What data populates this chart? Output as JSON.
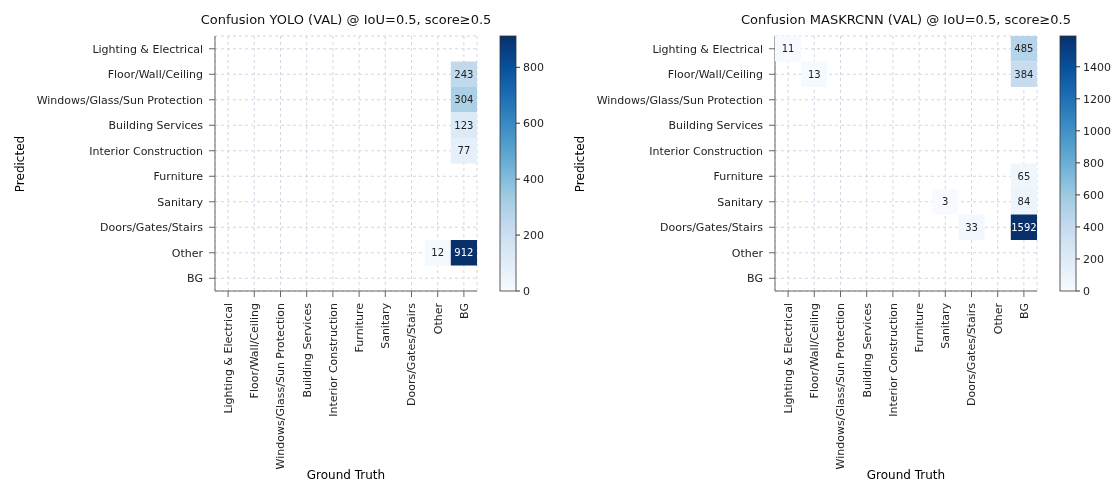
{
  "chart_data": [
    {
      "type": "heatmap",
      "title": "Confusion YOLO (VAL) @ IoU=0.5, score≥0.5",
      "xlabel": "Ground Truth",
      "ylabel": "Predicted",
      "grid": true,
      "categories": [
        "Lighting & Electrical",
        "Floor/Wall/Ceiling",
        "Windows/Glass/Sun Protection",
        "Building Services",
        "Interior Construction",
        "Furniture",
        "Sanitary",
        "Doors/Gates/Stairs",
        "Other",
        "BG"
      ],
      "y_categories": [
        "Lighting & Electrical",
        "Floor/Wall/Ceiling",
        "Windows/Glass/Sun Protection",
        "Building Services",
        "Interior Construction",
        "Furniture",
        "Sanitary",
        "Doors/Gates/Stairs",
        "Other",
        "BG"
      ],
      "cells": [
        [
          0,
          0,
          0,
          0,
          0,
          0,
          0,
          0,
          0,
          0
        ],
        [
          0,
          0,
          0,
          0,
          0,
          0,
          0,
          0,
          0,
          243
        ],
        [
          0,
          0,
          0,
          0,
          0,
          0,
          0,
          0,
          0,
          304
        ],
        [
          0,
          0,
          0,
          0,
          0,
          0,
          0,
          0,
          0,
          123
        ],
        [
          0,
          0,
          0,
          0,
          0,
          0,
          0,
          0,
          0,
          77
        ],
        [
          0,
          0,
          0,
          0,
          0,
          0,
          0,
          0,
          0,
          0
        ],
        [
          0,
          0,
          0,
          0,
          0,
          0,
          0,
          0,
          0,
          0
        ],
        [
          0,
          0,
          0,
          0,
          0,
          0,
          0,
          0,
          0,
          0
        ],
        [
          0,
          0,
          0,
          0,
          0,
          0,
          0,
          0,
          12,
          912
        ],
        [
          0,
          0,
          0,
          0,
          0,
          0,
          0,
          0,
          0,
          0
        ]
      ],
      "cell_labels": [
        [
          null,
          null,
          null,
          null,
          null,
          null,
          null,
          null,
          null,
          null
        ],
        [
          null,
          null,
          null,
          null,
          null,
          null,
          null,
          null,
          null,
          "243"
        ],
        [
          null,
          null,
          null,
          null,
          null,
          null,
          null,
          null,
          null,
          "304"
        ],
        [
          null,
          null,
          null,
          null,
          null,
          null,
          null,
          null,
          null,
          "123"
        ],
        [
          null,
          null,
          null,
          null,
          null,
          null,
          null,
          null,
          null,
          "77"
        ],
        [
          null,
          null,
          null,
          null,
          null,
          null,
          null,
          null,
          null,
          null
        ],
        [
          null,
          null,
          null,
          null,
          null,
          null,
          null,
          null,
          null,
          null
        ],
        [
          null,
          null,
          null,
          null,
          null,
          null,
          null,
          null,
          null,
          null
        ],
        [
          null,
          null,
          null,
          null,
          null,
          null,
          null,
          null,
          "12",
          "912"
        ],
        [
          null,
          null,
          null,
          null,
          null,
          null,
          null,
          null,
          null,
          null
        ]
      ],
      "clim": [
        0,
        912
      ],
      "cticks": [
        0,
        200,
        400,
        600,
        800
      ]
    },
    {
      "type": "heatmap",
      "title": "Confusion MASKRCNN (VAL) @ IoU=0.5, score≥0.5",
      "xlabel": "Ground Truth",
      "ylabel": "Predicted",
      "grid": true,
      "categories": [
        "Lighting & Electrical",
        "Floor/Wall/Ceiling",
        "Windows/Glass/Sun Protection",
        "Building Services",
        "Interior Construction",
        "Furniture",
        "Sanitary",
        "Doors/Gates/Stairs",
        "Other",
        "BG"
      ],
      "y_categories": [
        "Lighting & Electrical",
        "Floor/Wall/Ceiling",
        "Windows/Glass/Sun Protection",
        "Building Services",
        "Interior Construction",
        "Furniture",
        "Sanitary",
        "Doors/Gates/Stairs",
        "Other",
        "BG"
      ],
      "cells": [
        [
          11,
          0,
          0,
          0,
          0,
          0,
          0,
          0,
          0,
          485
        ],
        [
          0,
          13,
          0,
          0,
          0,
          0,
          0,
          0,
          0,
          384
        ],
        [
          0,
          0,
          0,
          0,
          0,
          0,
          0,
          0,
          0,
          0
        ],
        [
          0,
          0,
          0,
          0,
          0,
          0,
          0,
          0,
          0,
          0
        ],
        [
          0,
          0,
          0,
          0,
          0,
          0,
          0,
          0,
          0,
          0
        ],
        [
          0,
          0,
          0,
          0,
          0,
          0,
          0,
          0,
          0,
          65
        ],
        [
          0,
          0,
          0,
          0,
          0,
          0,
          3,
          0,
          0,
          84
        ],
        [
          0,
          0,
          0,
          0,
          0,
          0,
          0,
          33,
          0,
          1592
        ],
        [
          0,
          0,
          0,
          0,
          0,
          0,
          0,
          0,
          0,
          0
        ],
        [
          0,
          0,
          0,
          0,
          0,
          0,
          0,
          0,
          0,
          0
        ]
      ],
      "cell_labels": [
        [
          "11",
          null,
          null,
          null,
          null,
          null,
          null,
          null,
          null,
          "485"
        ],
        [
          null,
          "13",
          null,
          null,
          null,
          null,
          null,
          null,
          null,
          "384"
        ],
        [
          null,
          null,
          null,
          null,
          null,
          null,
          null,
          null,
          null,
          null
        ],
        [
          null,
          null,
          null,
          null,
          null,
          null,
          null,
          null,
          null,
          null
        ],
        [
          null,
          null,
          null,
          null,
          null,
          null,
          null,
          null,
          null,
          null
        ],
        [
          null,
          null,
          null,
          null,
          null,
          null,
          null,
          null,
          null,
          "65"
        ],
        [
          null,
          null,
          null,
          null,
          null,
          null,
          "3",
          null,
          null,
          "84"
        ],
        [
          null,
          null,
          null,
          null,
          null,
          null,
          null,
          "33",
          null,
          "1592"
        ],
        [
          null,
          null,
          null,
          null,
          null,
          null,
          null,
          null,
          null,
          null
        ],
        [
          null,
          null,
          null,
          null,
          null,
          null,
          null,
          null,
          null,
          null
        ]
      ],
      "clim": [
        0,
        1592
      ],
      "cticks": [
        0,
        200,
        400,
        600,
        800,
        1000,
        1200,
        1400
      ]
    }
  ]
}
